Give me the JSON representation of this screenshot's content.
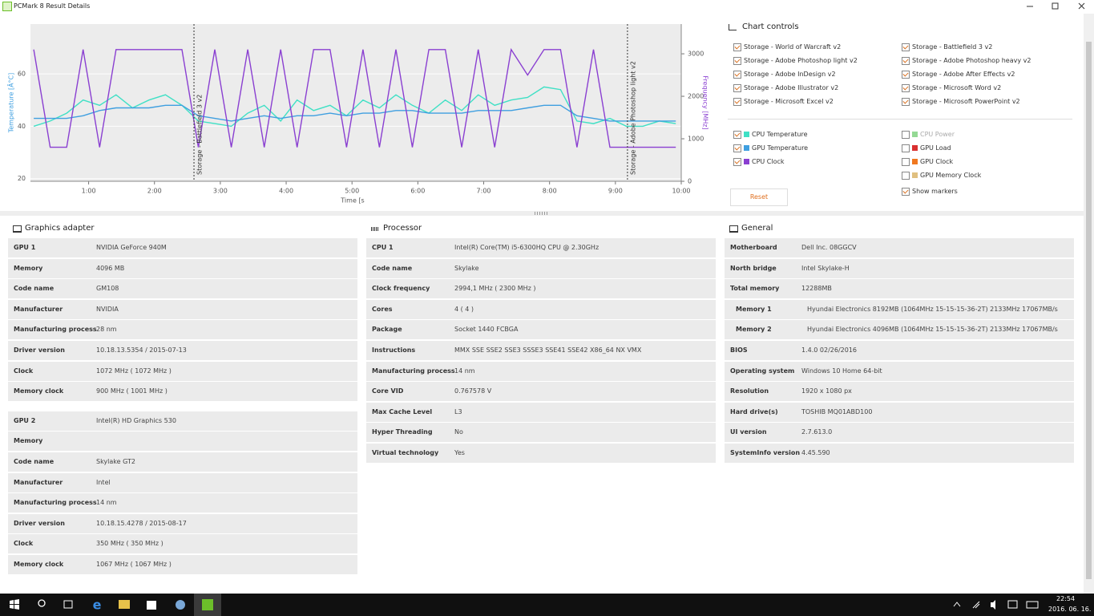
{
  "window": {
    "title": "PCMark 8 Result Details"
  },
  "chart": {
    "type": "line",
    "y_label": "Temperature [Â°C]",
    "y2_label": "Frequency [MHz]",
    "x_label": "Time [s",
    "xlim": [
      7,
      600
    ],
    "ylim": [
      19,
      79
    ],
    "y2lim": [
      0,
      3700
    ],
    "xticks": [
      {
        "value": 60,
        "label": "1:00"
      },
      {
        "value": 120,
        "label": "2:00"
      },
      {
        "value": 180,
        "label": "3:00"
      },
      {
        "value": 240,
        "label": "4:00"
      },
      {
        "value": 300,
        "label": "5:00"
      },
      {
        "value": 360,
        "label": "6:00"
      },
      {
        "value": 420,
        "label": "7:00"
      },
      {
        "value": 480,
        "label": "8:00"
      },
      {
        "value": 540,
        "label": "9:00"
      },
      {
        "value": 600,
        "label": "10:00"
      }
    ],
    "yticks": [
      20,
      40,
      60
    ],
    "y2ticks": [
      0,
      1000,
      2000,
      3000
    ],
    "grid": true,
    "markers": [
      {
        "label": "Storage - Battlefield 3 v2",
        "x": 156
      },
      {
        "label": "Storage - Adobe Photoshop light v2",
        "x": 551
      }
    ],
    "x": [
      10,
      25,
      40,
      55,
      70,
      85,
      100,
      115,
      130,
      145,
      160,
      175,
      190,
      205,
      220,
      235,
      250,
      265,
      280,
      295,
      310,
      325,
      340,
      355,
      370,
      385,
      400,
      415,
      430,
      445,
      460,
      475,
      490,
      505,
      520,
      535,
      550,
      565,
      580,
      595
    ],
    "series": [
      {
        "name": "CPU Temperature",
        "color": "#3fe0c5",
        "values": [
          40,
          42,
          45,
          50,
          48,
          52,
          47,
          50,
          52,
          48,
          42,
          41,
          40,
          45,
          48,
          42,
          50,
          46,
          48,
          44,
          50,
          47,
          52,
          48,
          45,
          50,
          46,
          52,
          48,
          50,
          51,
          55,
          54,
          42,
          41,
          43,
          40,
          40,
          42,
          41
        ]
      },
      {
        "name": "GPU Temperature",
        "color": "#3f9fe0",
        "values": [
          43,
          43,
          43,
          44,
          46,
          47,
          47,
          47,
          48,
          48,
          44,
          43,
          42,
          43,
          44,
          43,
          44,
          44,
          45,
          44,
          45,
          45,
          46,
          46,
          45,
          45,
          45,
          46,
          46,
          46,
          47,
          48,
          48,
          44,
          43,
          42,
          42,
          42,
          42,
          42
        ]
      },
      {
        "name": "CPU Clock",
        "color": "#8a3fd1",
        "axis": "y2",
        "values": [
          3100,
          800,
          800,
          3100,
          800,
          3100,
          3100,
          3100,
          3100,
          3100,
          800,
          3100,
          800,
          3100,
          800,
          3100,
          800,
          3100,
          3100,
          800,
          3100,
          800,
          3100,
          800,
          3100,
          3100,
          800,
          3100,
          800,
          3100,
          2500,
          3100,
          3100,
          800,
          3100,
          800,
          800,
          800,
          800,
          800
        ]
      }
    ]
  },
  "chart_controls": {
    "title": "Chart controls",
    "storage": [
      {
        "name": "Storage - World of Warcraft v2",
        "checked": true
      },
      {
        "name": "Storage - Battlefield 3 v2",
        "checked": true
      },
      {
        "name": "Storage - Adobe Photoshop light v2",
        "checked": true
      },
      {
        "name": "Storage - Adobe Photoshop heavy v2",
        "checked": true
      },
      {
        "name": "Storage - Adobe InDesign v2",
        "checked": true
      },
      {
        "name": "Storage - Adobe After Effects v2",
        "checked": true
      },
      {
        "name": "Storage - Adobe Illustrator v2",
        "checked": true
      },
      {
        "name": "Storage - Microsoft Word v2",
        "checked": true
      },
      {
        "name": "Storage - Microsoft Excel v2",
        "checked": true
      },
      {
        "name": "Storage - Microsoft PowerPoint v2",
        "checked": true
      }
    ],
    "metrics_left": [
      {
        "name": "CPU Temperature",
        "color": "#3fe0c5",
        "checked": true
      },
      {
        "name": "GPU Temperature",
        "color": "#3f9fe0",
        "checked": true
      },
      {
        "name": "CPU Clock",
        "color": "#8a3fd1",
        "checked": true
      }
    ],
    "metrics_right": [
      {
        "name": "CPU Power",
        "color": "#4cc04c",
        "checked": false,
        "disabled": true
      },
      {
        "name": "GPU Load",
        "color": "#d93030",
        "checked": false
      },
      {
        "name": "GPU Clock",
        "color": "#f07820",
        "checked": false
      },
      {
        "name": "GPU Memory Clock",
        "color": "#e0c080",
        "checked": false
      }
    ],
    "show_markers": {
      "name": "Show markers",
      "checked": true
    },
    "reset": "Reset"
  },
  "graphics_adapter": {
    "title": "Graphics adapter",
    "groups": [
      [
        [
          "GPU 1",
          "NVIDIA GeForce 940M"
        ],
        [
          "Memory",
          "4096 MB"
        ],
        [
          "Code name",
          "GM108"
        ],
        [
          "Manufacturer",
          "NVIDIA"
        ],
        [
          "Manufacturing process",
          "28 nm"
        ],
        [
          "Driver version",
          "10.18.13.5354 / 2015-07-13"
        ],
        [
          "Clock",
          "1072 MHz ( 1072 MHz )"
        ],
        [
          "Memory clock",
          "900 MHz ( 1001 MHz )"
        ]
      ],
      [
        [
          "GPU 2",
          "Intel(R) HD Graphics 530"
        ],
        [
          "Memory"
        ],
        [
          "Code name",
          "Skylake GT2"
        ],
        [
          "Manufacturer",
          "Intel"
        ],
        [
          "Manufacturing process",
          "14 nm"
        ],
        [
          "Driver version",
          "10.18.15.4278 / 2015-08-17"
        ],
        [
          "Clock",
          "350 MHz ( 350 MHz )"
        ],
        [
          "Memory clock",
          "1067 MHz ( 1067 MHz )"
        ]
      ]
    ]
  },
  "processor": {
    "title": "Processor",
    "groups": [
      [
        [
          "CPU 1",
          "Intel(R) Core(TM) i5-6300HQ CPU @ 2.30GHz"
        ],
        [
          "Code name",
          "Skylake"
        ],
        [
          "Clock frequency",
          "2994,1 MHz ( 2300 MHz )"
        ],
        [
          "Cores",
          "4 ( 4 )"
        ],
        [
          "Package",
          "Socket 1440 FCBGA"
        ],
        [
          "Instructions",
          "MMX SSE SSE2 SSE3 SSSE3 SSE41 SSE42 X86_64 NX VMX"
        ],
        [
          "Manufacturing process",
          "14 nm"
        ],
        [
          "Core VID",
          "0.767578 V"
        ],
        [
          "Max Cache Level",
          "L3"
        ],
        [
          "Hyper Threading",
          "No"
        ],
        [
          "Virtual technology",
          "Yes"
        ]
      ]
    ]
  },
  "general": {
    "title": "General",
    "groups": [
      [
        [
          "Motherboard",
          "Dell Inc. 08GGCV"
        ],
        [
          "North bridge",
          "Intel Skylake-H"
        ],
        [
          "Total memory",
          "12288MB"
        ],
        [
          "Memory 1",
          "Hyundai Electronics 8192MB   (1064MHz 15-15-15-36-2T) 2133MHz 17067MB/s"
        ],
        [
          "Memory 2",
          "Hyundai Electronics 4096MB   (1064MHz 15-15-15-36-2T) 2133MHz 17067MB/s"
        ],
        [
          "BIOS",
          "1.4.0 02/26/2016"
        ],
        [
          "Operating system",
          "Windows 10 Home 64-bit"
        ],
        [
          "Resolution",
          "1920 x 1080 px"
        ],
        [
          "Hard drive(s)",
          "TOSHIB MQ01ABD100"
        ],
        [
          "UI version",
          "2.7.613.0"
        ],
        [
          "SystemInfo version",
          "4.45.590"
        ]
      ]
    ]
  },
  "taskbar": {
    "time": "22:54",
    "date": "2016. 06. 16."
  }
}
